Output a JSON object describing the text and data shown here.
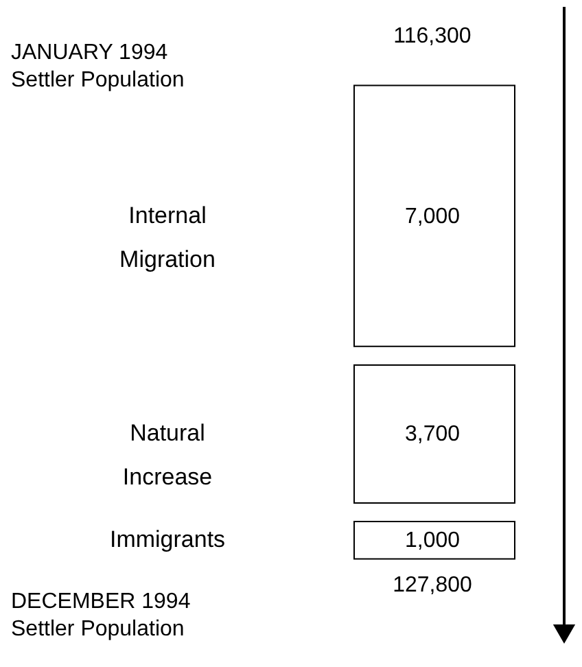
{
  "chart_data": {
    "type": "other",
    "categories": [
      "Internal\nMigration",
      "Natural\nIncrease",
      "Immigrants"
    ],
    "values": [
      7000,
      3700,
      1000
    ],
    "value_labels": [
      "7,000",
      "3,700",
      "1,000"
    ],
    "annotations": [
      "JANUARY 1994\nSettler Population",
      "116,300",
      "DECEMBER 1994\nSettler Population",
      "127,800"
    ]
  }
}
